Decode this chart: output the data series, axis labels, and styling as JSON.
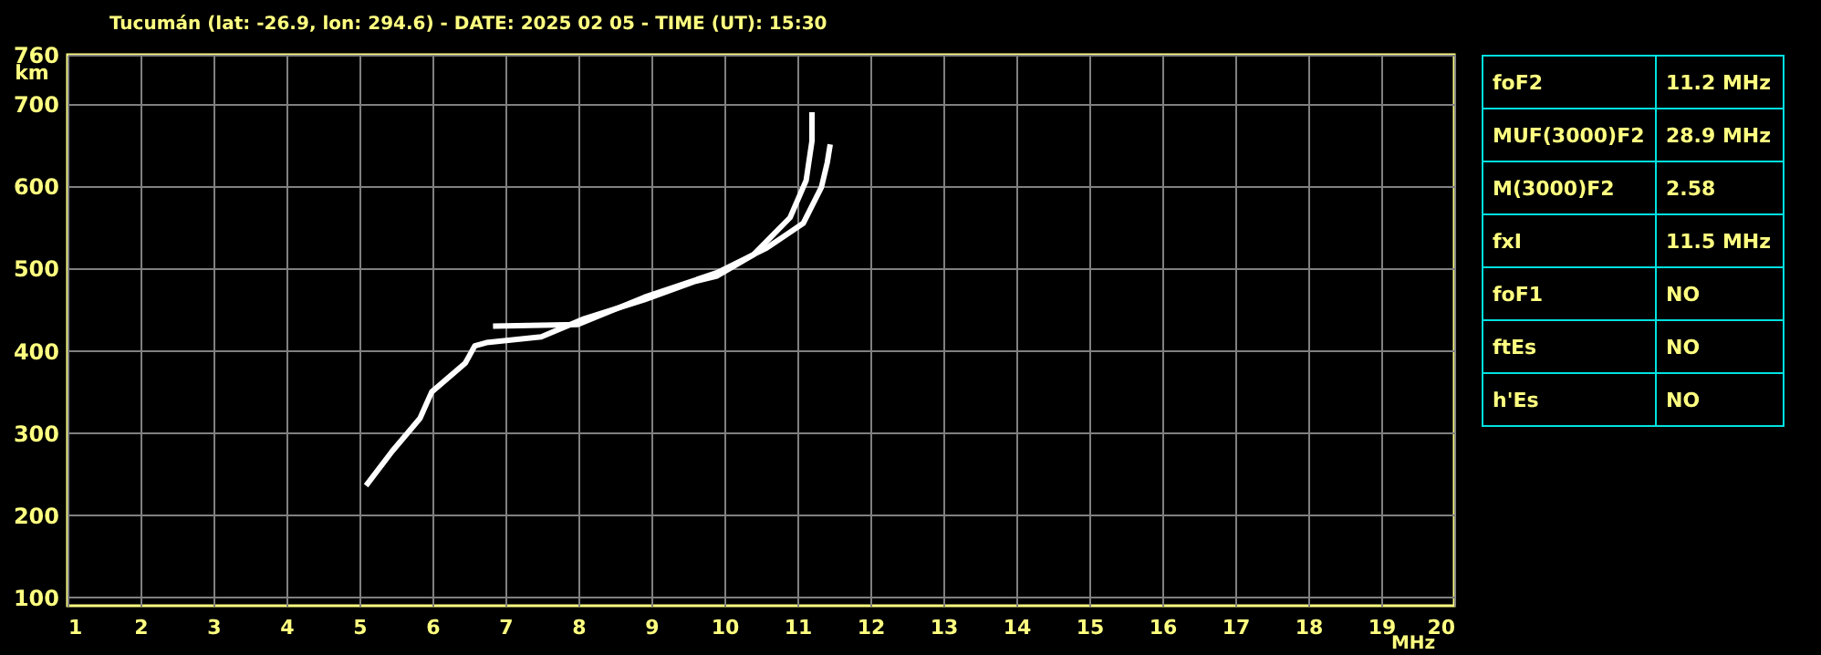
{
  "chart_data": [
    {
      "type": "line",
      "title": "Tucumán (lat: -26.9, lon: 294.6) - DATE: 2025 02 05 - TIME (UT): 15:30",
      "xlabel": "MHz",
      "ylabel": "km",
      "xlim": [
        1,
        20
      ],
      "xticks": [
        1,
        2,
        3,
        4,
        5,
        6,
        7,
        8,
        9,
        10,
        11,
        12,
        13,
        14,
        15,
        16,
        17,
        18,
        19,
        20
      ],
      "ylim": [
        90,
        760
      ],
      "yticks": [
        100,
        200,
        300,
        400,
        500,
        600,
        700,
        760
      ],
      "grid": true,
      "marker": "none",
      "line_style": "solid",
      "series": [
        {
          "color": "#ffffff",
          "x": [
            5.09,
            5.45,
            5.83,
            5.99,
            6.45,
            6.58,
            6.74,
            7.49,
            8.08,
            8.9,
            9.58,
            9.9,
            10.4,
            10.9,
            11.12,
            11.2,
            11.2
          ],
          "values": [
            236,
            278,
            318,
            350,
            385,
            406,
            410,
            417,
            439,
            462,
            484,
            491,
            517,
            562,
            607,
            655,
            690
          ]
        },
        {
          "color": "#ffffff",
          "x": [
            6.83,
            7.99,
            8.9,
            9.9,
            10.58,
            11.08,
            11.33,
            11.41,
            11.45
          ],
          "values": [
            430,
            432,
            465,
            495,
            525,
            555,
            599,
            629,
            651
          ]
        }
      ]
    },
    {
      "type": "other",
      "annotations": [
        "foF2",
        "11.2 MHz",
        "MUF(3000)F2",
        "28.9 MHz",
        "M(3000)F2",
        "2.58",
        "fxI",
        "11.5 MHz",
        "foF1",
        "NO",
        "ftEs",
        "NO",
        "h'Es",
        "NO"
      ]
    }
  ]
}
